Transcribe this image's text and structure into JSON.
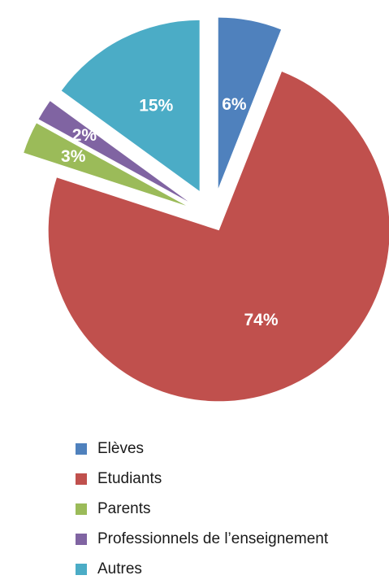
{
  "chart_data": {
    "type": "pie",
    "exploded": true,
    "legend_position": "bottom",
    "slices": [
      {
        "label": "Elèves",
        "value": 6,
        "value_label": "6%",
        "color": "#4F81BD"
      },
      {
        "label": "Etudiants",
        "value": 74,
        "value_label": "74%",
        "color": "#C0504D"
      },
      {
        "label": "Parents",
        "value": 3,
        "value_label": "3%",
        "color": "#9BBB59"
      },
      {
        "label": "Professionnels de l’enseignement",
        "value": 2,
        "value_label": "2%",
        "color": "#8064A2"
      },
      {
        "label": "Autres",
        "value": 15,
        "value_label": "15%",
        "color": "#4BACC6"
      }
    ]
  }
}
